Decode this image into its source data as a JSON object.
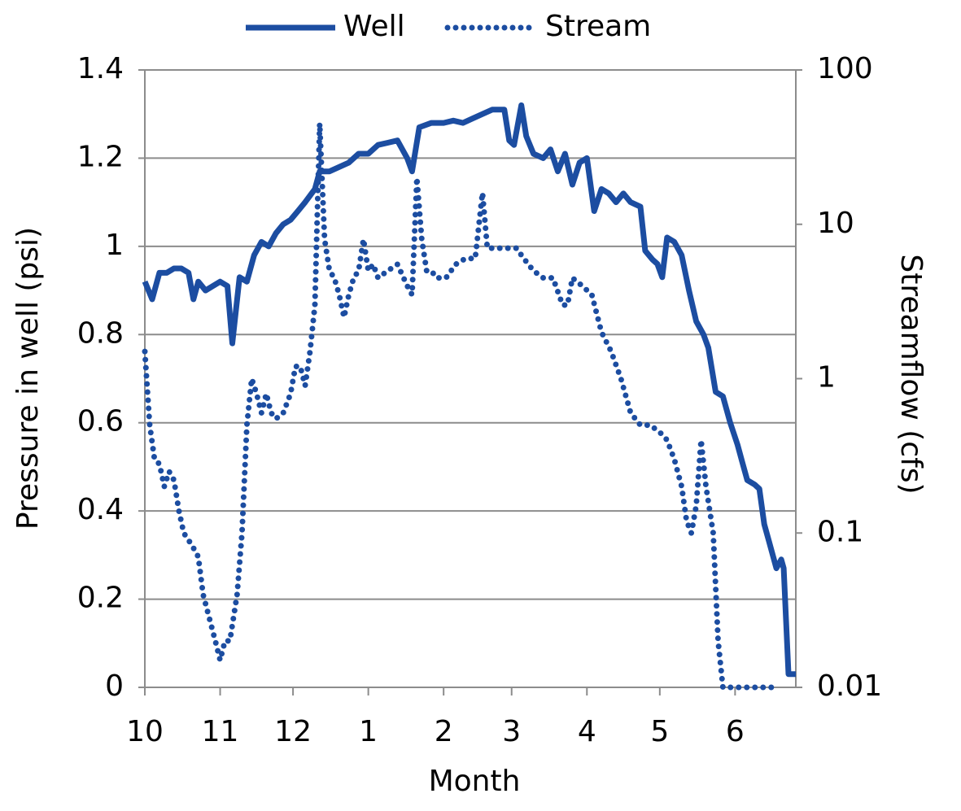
{
  "chart_data": {
    "type": "line",
    "xlabel": "Month",
    "ylabel": "Pressure in well (psi)",
    "y2label": "Streamflow (cfs)",
    "xlim": [
      0,
      268
    ],
    "xticks": [
      {
        "value": 0,
        "label": "10"
      },
      {
        "value": 31,
        "label": "11"
      },
      {
        "value": 61,
        "label": "12"
      },
      {
        "value": 92,
        "label": "1"
      },
      {
        "value": 123,
        "label": "2"
      },
      {
        "value": 151,
        "label": "3"
      },
      {
        "value": 182,
        "label": "4"
      },
      {
        "value": 212,
        "label": "5"
      },
      {
        "value": 243,
        "label": "6"
      }
    ],
    "ylim": [
      0,
      1.4
    ],
    "yticks": [
      0,
      0.2,
      0.4,
      0.6,
      0.8,
      1,
      1.2,
      1.4
    ],
    "y2lim": [
      0.01,
      100
    ],
    "y2ticks": [
      0.01,
      0.1,
      1,
      10,
      100
    ],
    "y2scale": "log",
    "grid": true,
    "legend": "top",
    "series": [
      {
        "name": "Well",
        "color": "#1c4da1",
        "style": "solid",
        "x": [
          0,
          3,
          6,
          9,
          12,
          15,
          18,
          20,
          22,
          25,
          28,
          31,
          34,
          36,
          39,
          42,
          45,
          48,
          51,
          54,
          57,
          60,
          63,
          66,
          70,
          72,
          76,
          80,
          84,
          88,
          92,
          96,
          100,
          104,
          108,
          110,
          113,
          118,
          123,
          127,
          131,
          135,
          139,
          143,
          148,
          150,
          152,
          155,
          157,
          160,
          164,
          167,
          170,
          173,
          176,
          179,
          182,
          185,
          188,
          191,
          194,
          197,
          200,
          204,
          206,
          209,
          211,
          213,
          215,
          218,
          221,
          224,
          227,
          230,
          232,
          235,
          238,
          241,
          244,
          246,
          248,
          251,
          253,
          255,
          257,
          260,
          262,
          263,
          265,
          268
        ],
        "values": [
          0.92,
          0.88,
          0.94,
          0.94,
          0.95,
          0.95,
          0.94,
          0.88,
          0.92,
          0.9,
          0.91,
          0.92,
          0.91,
          0.78,
          0.93,
          0.92,
          0.98,
          1.01,
          1.0,
          1.03,
          1.05,
          1.06,
          1.08,
          1.1,
          1.13,
          1.17,
          1.17,
          1.18,
          1.19,
          1.21,
          1.21,
          1.23,
          1.235,
          1.24,
          1.2,
          1.17,
          1.27,
          1.28,
          1.28,
          1.285,
          1.28,
          1.29,
          1.3,
          1.31,
          1.31,
          1.24,
          1.23,
          1.32,
          1.25,
          1.21,
          1.2,
          1.22,
          1.17,
          1.21,
          1.14,
          1.19,
          1.2,
          1.08,
          1.13,
          1.12,
          1.1,
          1.12,
          1.1,
          1.09,
          0.99,
          0.97,
          0.96,
          0.93,
          1.02,
          1.01,
          0.98,
          0.9,
          0.83,
          0.8,
          0.77,
          0.67,
          0.66,
          0.6,
          0.55,
          0.51,
          0.47,
          0.46,
          0.45,
          0.37,
          0.33,
          0.27,
          0.29,
          0.27,
          0.03,
          0.03
        ]
      },
      {
        "name": "Stream",
        "color": "#1c4da1",
        "style": "dotted",
        "axis": "y2",
        "x": [
          0,
          2,
          4,
          6,
          8,
          10,
          12,
          14,
          16,
          18,
          20,
          22,
          24,
          29,
          31,
          33,
          35,
          38,
          40,
          42,
          44,
          46,
          48,
          50,
          52,
          54,
          57,
          60,
          62,
          64,
          66,
          68,
          70,
          72,
          74,
          76,
          78,
          80,
          82,
          84,
          86,
          88,
          90,
          92,
          94,
          96,
          100,
          104,
          108,
          110,
          112,
          114,
          116,
          118,
          120,
          124,
          128,
          132,
          136,
          139,
          141,
          145,
          150,
          153,
          156,
          160,
          164,
          168,
          172,
          174,
          176,
          180,
          184,
          188,
          192,
          196,
          200,
          204,
          208,
          212,
          215,
          218,
          221,
          223,
          225,
          227,
          229,
          231,
          234,
          236,
          238,
          241,
          245,
          250,
          255,
          261
        ],
        "values": [
          1.5,
          0.5,
          0.3,
          0.28,
          0.2,
          0.25,
          0.22,
          0.14,
          0.1,
          0.09,
          0.08,
          0.07,
          0.04,
          0.02,
          0.015,
          0.02,
          0.02,
          0.04,
          0.1,
          0.5,
          1.0,
          0.8,
          0.6,
          0.8,
          0.6,
          0.55,
          0.6,
          0.8,
          1.2,
          1.2,
          0.9,
          1.5,
          3,
          45,
          8,
          5,
          4.5,
          3.5,
          2.5,
          3.5,
          4.5,
          5,
          8,
          5,
          5.5,
          4.5,
          5,
          5.5,
          4,
          3.5,
          20,
          8,
          5,
          5,
          4.5,
          4.5,
          5.5,
          6,
          6,
          16,
          7,
          7,
          7,
          7,
          6,
          5,
          4.5,
          4.5,
          3,
          3,
          4.5,
          4,
          3.5,
          2,
          1.5,
          1,
          0.6,
          0.5,
          0.5,
          0.45,
          0.4,
          0.3,
          0.2,
          0.12,
          0.1,
          0.15,
          0.4,
          0.2,
          0.1,
          0.02,
          0.01,
          0.01,
          0.01,
          0.01,
          0.01,
          0.01
        ]
      }
    ]
  }
}
